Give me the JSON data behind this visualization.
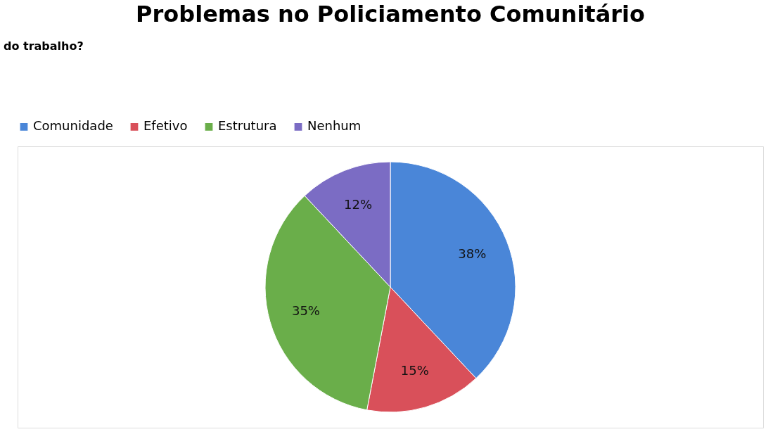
{
  "chart_data": {
    "type": "pie",
    "title": "Problemas no Policiamento Comunitário",
    "categories": [
      "Comunidade",
      "Efetivo",
      "Estrutura",
      "Nenhum"
    ],
    "values": [
      38,
      15,
      35,
      12
    ],
    "colors": [
      "#4a86d8",
      "#d9505a",
      "#6aae4a",
      "#7b6cc4"
    ],
    "value_labels": [
      "38%",
      "15%",
      "35%",
      "12%"
    ],
    "legend": "top",
    "annotations": [
      "do trabalho?"
    ]
  }
}
